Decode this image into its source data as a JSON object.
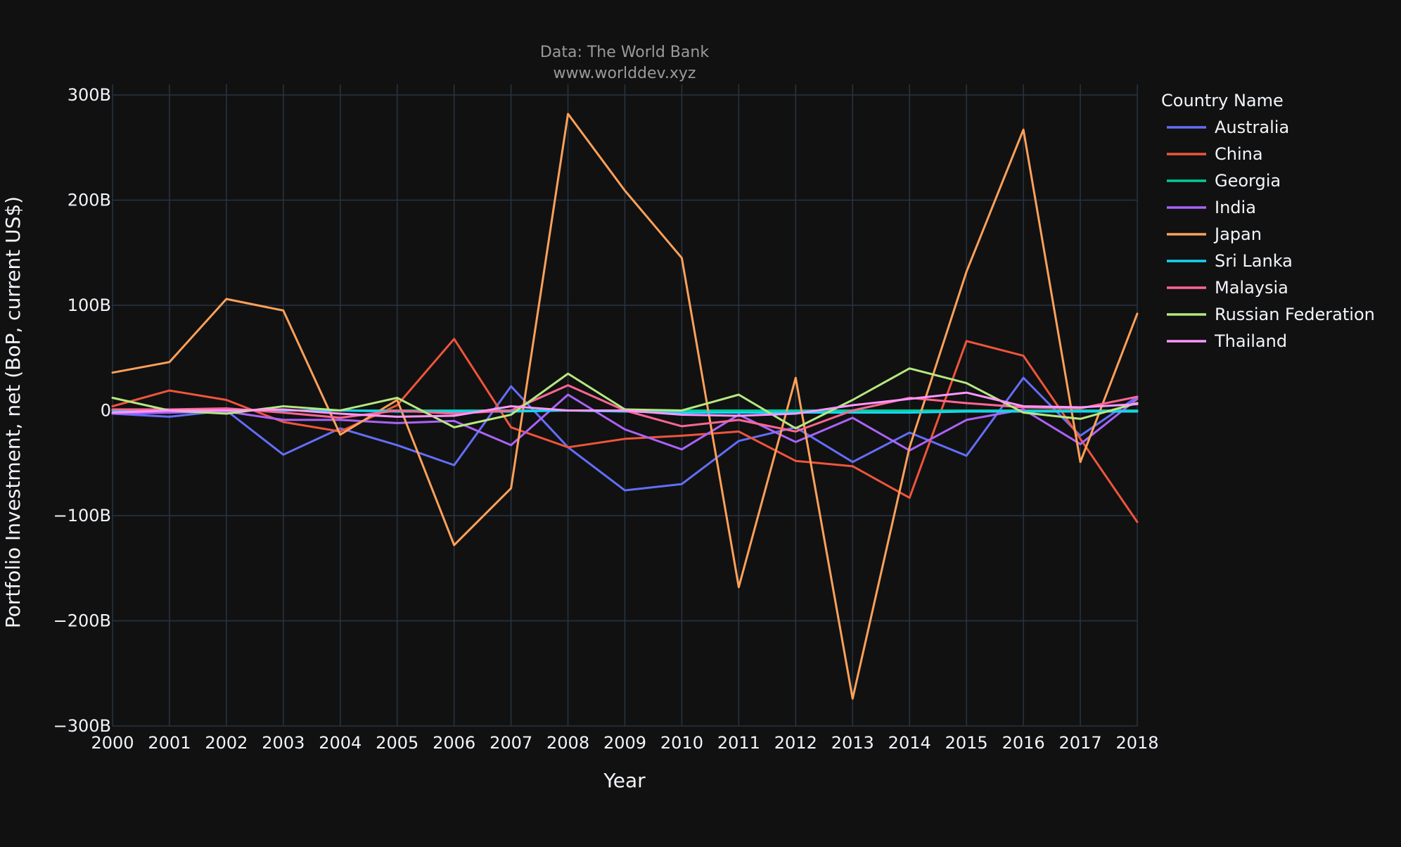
{
  "colors": {
    "background": "#111111",
    "grid": "#283442",
    "text": "#f2f5fa",
    "subtitle": "#9a9a9a"
  },
  "chart_data": {
    "type": "line",
    "title_lines": [
      "Data: The World Bank",
      "www.worlddev.xyz"
    ],
    "xlabel": "Year",
    "ylabel": "Portfolio Investment, net (BoP, current US$)",
    "legend_title": "Country Name",
    "legend_position": "right",
    "grid": true,
    "xlim": [
      2000,
      2018
    ],
    "ylim": [
      -300,
      310
    ],
    "y_unit": "billions of current US$",
    "x": [
      2000,
      2001,
      2002,
      2003,
      2004,
      2005,
      2006,
      2007,
      2008,
      2009,
      2010,
      2011,
      2012,
      2013,
      2014,
      2015,
      2016,
      2017,
      2018
    ],
    "x_ticks": [
      {
        "value": 2000,
        "label": "2000"
      },
      {
        "value": 2001,
        "label": "2001"
      },
      {
        "value": 2002,
        "label": "2002"
      },
      {
        "value": 2003,
        "label": "2003"
      },
      {
        "value": 2004,
        "label": "2004"
      },
      {
        "value": 2005,
        "label": "2005"
      },
      {
        "value": 2006,
        "label": "2006"
      },
      {
        "value": 2007,
        "label": "2007"
      },
      {
        "value": 2008,
        "label": "2008"
      },
      {
        "value": 2009,
        "label": "2009"
      },
      {
        "value": 2010,
        "label": "2010"
      },
      {
        "value": 2011,
        "label": "2011"
      },
      {
        "value": 2012,
        "label": "2012"
      },
      {
        "value": 2013,
        "label": "2013"
      },
      {
        "value": 2014,
        "label": "2014"
      },
      {
        "value": 2015,
        "label": "2015"
      },
      {
        "value": 2016,
        "label": "2016"
      },
      {
        "value": 2017,
        "label": "2017"
      },
      {
        "value": 2018,
        "label": "2018"
      }
    ],
    "y_ticks": [
      {
        "value": 300,
        "label": "300B"
      },
      {
        "value": 200,
        "label": "200B"
      },
      {
        "value": 100,
        "label": "100B"
      },
      {
        "value": 0,
        "label": "0"
      },
      {
        "value": -100,
        "label": "−100B"
      },
      {
        "value": -200,
        "label": "−200B"
      },
      {
        "value": -300,
        "label": "−300B"
      }
    ],
    "series": [
      {
        "name": "Australia",
        "color": "#636efa",
        "values": [
          -3,
          -6,
          0,
          -42,
          -17,
          -33,
          -52,
          23,
          -35,
          -76,
          -70,
          -29,
          -16,
          -49,
          -21,
          -43,
          31,
          -24,
          13
        ]
      },
      {
        "name": "China",
        "color": "#ef553b",
        "values": [
          4,
          19,
          10,
          -11,
          -20,
          5,
          68,
          -16,
          -35,
          -27,
          -24,
          -20,
          -48,
          -53,
          -83,
          66,
          52,
          -27,
          -106
        ]
      },
      {
        "name": "Georgia",
        "color": "#00cc96",
        "values": [
          0,
          0,
          0,
          0,
          0,
          0,
          0,
          0,
          0,
          0,
          0,
          0,
          0,
          0,
          0,
          0,
          0,
          0,
          0
        ]
      },
      {
        "name": "India",
        "color": "#ab63fa",
        "values": [
          -3,
          -2,
          -1,
          -9,
          -9,
          -12,
          -10,
          -33,
          15,
          -18,
          -37,
          -4,
          -30,
          -7,
          -38,
          -9,
          1,
          -32,
          11
        ]
      },
      {
        "name": "Japan",
        "color": "#ffa15a",
        "values": [
          36,
          46,
          106,
          95,
          -23,
          10,
          -128,
          -74,
          282,
          209,
          145,
          -168,
          31,
          -274,
          -35,
          132,
          267,
          -49,
          92
        ]
      },
      {
        "name": "Sri Lanka",
        "color": "#19d3f3",
        "values": [
          0,
          0,
          0,
          0,
          0,
          -1,
          -1,
          -1,
          0,
          -1,
          -2,
          -2,
          -2,
          -2,
          -2,
          -1,
          -1,
          -1,
          -1
        ]
      },
      {
        "name": "Malaysia",
        "color": "#ff6692",
        "values": [
          1,
          1,
          2,
          -2,
          -7,
          0,
          -3,
          0,
          24,
          0,
          -15,
          -9,
          -20,
          0,
          12,
          7,
          3,
          2,
          13
        ]
      },
      {
        "name": "Russian Federation",
        "color": "#b6e880",
        "values": [
          12,
          0,
          -3,
          4,
          0,
          12,
          -16,
          -4,
          35,
          1,
          0,
          15,
          -17,
          10,
          40,
          26,
          -2,
          -8,
          7
        ]
      },
      {
        "name": "Thailand",
        "color": "#ff97ff",
        "values": [
          -2,
          0,
          0,
          1,
          -3,
          -6,
          -5,
          4,
          0,
          0,
          -4,
          -5,
          -3,
          5,
          11,
          17,
          4,
          3,
          6
        ]
      }
    ]
  }
}
